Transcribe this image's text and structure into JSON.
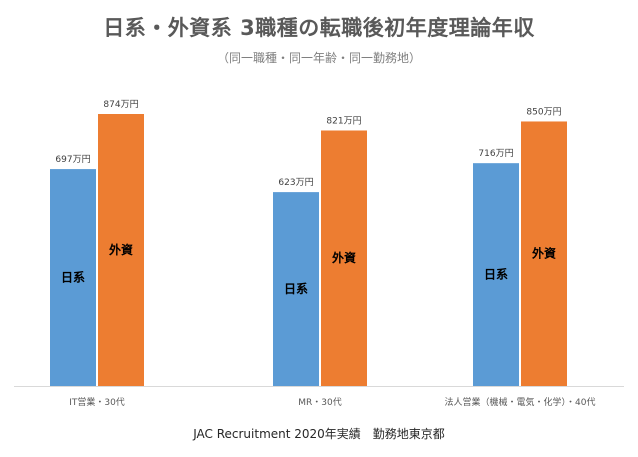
{
  "title": "日系・外資系 3職種の転職後初年度理論年収",
  "subtitle": "（同一職種・同一年齢・同一勤務地）",
  "footer": "JAC Recruitment 2020年実績　勤務地東京都",
  "colors": {
    "domestic": "#5b9bd5",
    "foreign": "#ed7d31",
    "axis": "#d9d9d9"
  },
  "chart_data": {
    "type": "bar",
    "categories": [
      "IT営業・30代",
      "MR・30代",
      "法人営業（機械・電気・化学）・40代"
    ],
    "series": [
      {
        "name": "日系",
        "values": [
          697,
          623,
          716
        ],
        "labels": [
          "697万円",
          "623万円",
          "716万円"
        ]
      },
      {
        "name": "外資",
        "values": [
          874,
          821,
          850
        ],
        "labels": [
          "874万円",
          "821万円",
          "850万円"
        ]
      }
    ],
    "ylim": [
      0,
      874
    ]
  }
}
